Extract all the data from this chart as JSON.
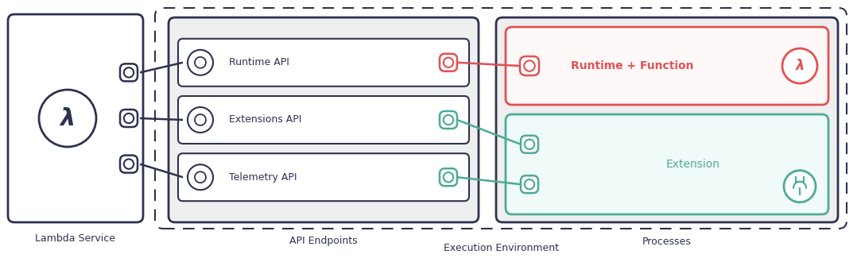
{
  "bg_color": "#ffffff",
  "dark_color": "#2e3250",
  "red_color": "#e05252",
  "teal_color": "#4daa99",
  "gray_fill": "#efefef",
  "fig_w": 10.83,
  "fig_h": 3.25,
  "dpi": 100,
  "labels": {
    "lambda_service": "Lambda Service",
    "api_endpoints": "API Endpoints",
    "processes": "Processes",
    "exec_env": "Execution Environment",
    "runtime_api": "Runtime API",
    "extensions_api": "Extensions API",
    "telemetry_api": "Telemetry API",
    "runtime_fn": "Runtime + Function",
    "extension": "Extension"
  }
}
